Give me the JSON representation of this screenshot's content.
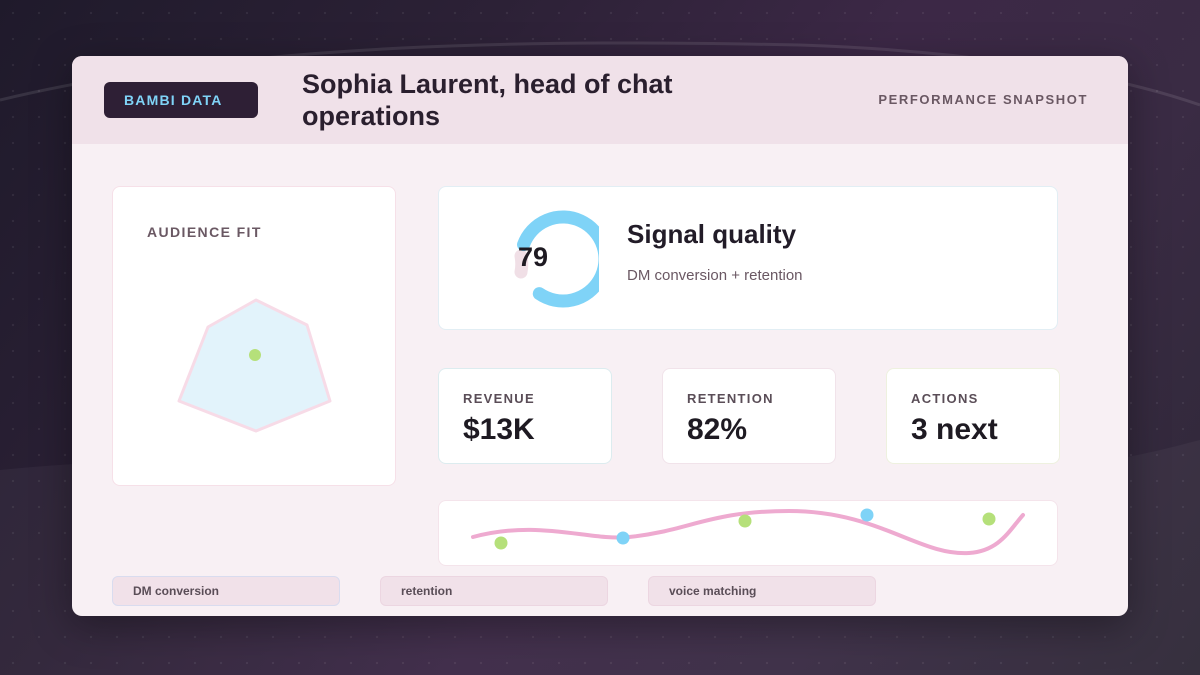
{
  "header": {
    "brand": "BAMBI DATA",
    "title": "Sophia Laurent, head of chat operations",
    "section": "PERFORMANCE SNAPSHOT"
  },
  "audience_fit": {
    "label": "AUDIENCE FIT"
  },
  "signal": {
    "score": "79",
    "score_value": 79,
    "title": "Signal quality",
    "subtitle": "DM conversion + retention"
  },
  "metrics": [
    {
      "label": "REVENUE",
      "value": "$13K"
    },
    {
      "label": "RETENTION",
      "value": "82%"
    },
    {
      "label": "ACTIONS",
      "value": "3 next"
    }
  ],
  "tags": [
    "DM conversion",
    "retention",
    "voice matching"
  ],
  "colors": {
    "accent_blue": "#7fd3f7",
    "accent_green": "#b5e07a",
    "accent_pink": "#eeaad0",
    "badge_bg": "#2e1f35"
  }
}
